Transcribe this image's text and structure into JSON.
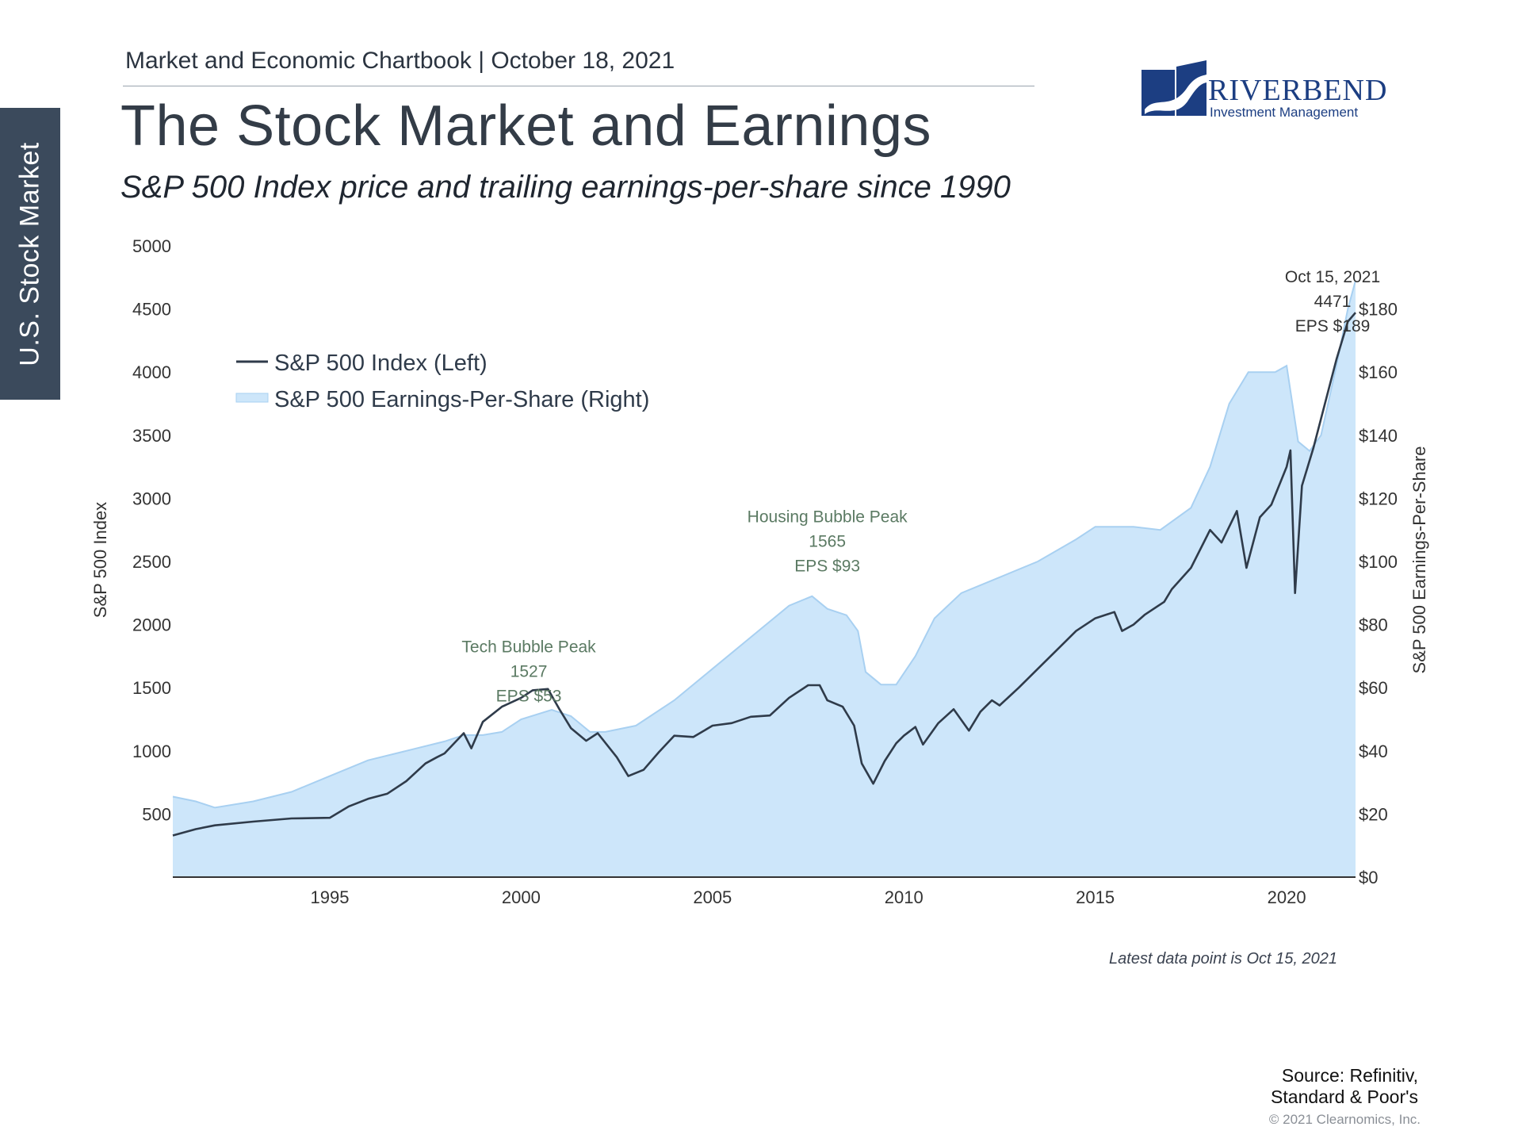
{
  "side_tab": "U.S. Stock Market",
  "header": "Market and Economic Chartbook | October 18, 2021",
  "title": "The Stock Market and Earnings",
  "subtitle": "S&P 500 Index price and trailing earnings-per-share since 1990",
  "logo": {
    "name": "RIVERBEND",
    "sub": "Investment Management",
    "color": "#1c3e82"
  },
  "footnote": "Latest data point is Oct 15, 2021",
  "source": [
    "Source: Refinitiv,",
    "Standard & Poor's"
  ],
  "copyright": "© 2021 Clearnomics, Inc.",
  "chart_data": {
    "type": "line",
    "ylabel": "S&P 500 Index",
    "y2label": "S&P 500 Earnings-Per-Share",
    "xlim": [
      1990.9,
      2021.8
    ],
    "ylim": [
      0,
      5000
    ],
    "y2lim": [
      0,
      200
    ],
    "x_ticks": [
      1995,
      2000,
      2005,
      2010,
      2015,
      2020
    ],
    "y_ticks": [
      500,
      1000,
      1500,
      2000,
      2500,
      3000,
      3500,
      4000,
      4500,
      5000
    ],
    "y2_ticks": [
      "$0",
      "$20",
      "$40",
      "$60",
      "$80",
      "$100",
      "$120",
      "$140",
      "$160",
      "$180"
    ],
    "y2_tick_values": [
      0,
      20,
      40,
      60,
      80,
      100,
      120,
      140,
      160,
      180
    ],
    "legend": {
      "placement": "top-left",
      "entries": [
        "S&P 500 Index (Left)",
        "S&P 500 Earnings-Per-Share (Right)"
      ]
    },
    "colors": {
      "index": "#2f3b4a",
      "eps_fill": "#cde6fa",
      "eps_line": "#a8d0f1",
      "annotation": "#5b7a63",
      "axis": "#333333"
    },
    "series": [
      {
        "name": "S&P 500 Index (Left)",
        "axis": "left",
        "x": [
          1990.9,
          1991.5,
          1992.0,
          1993.0,
          1994.0,
          1995.0,
          1995.5,
          1996.0,
          1996.5,
          1997.0,
          1997.5,
          1997.8,
          1998.0,
          1998.5,
          1998.7,
          1999.0,
          1999.5,
          2000.0,
          2000.3,
          2000.7,
          2001.0,
          2001.3,
          2001.7,
          2002.0,
          2002.5,
          2002.8,
          2003.2,
          2003.6,
          2004.0,
          2004.5,
          2005.0,
          2005.5,
          2006.0,
          2006.5,
          2007.0,
          2007.5,
          2007.8,
          2008.0,
          2008.4,
          2008.7,
          2008.9,
          2009.2,
          2009.5,
          2009.8,
          2010.0,
          2010.3,
          2010.5,
          2010.9,
          2011.3,
          2011.7,
          2012.0,
          2012.3,
          2012.5,
          2013.0,
          2013.5,
          2014.0,
          2014.5,
          2015.0,
          2015.5,
          2015.7,
          2016.0,
          2016.3,
          2016.8,
          2017.0,
          2017.5,
          2018.0,
          2018.3,
          2018.7,
          2018.95,
          2019.3,
          2019.6,
          2020.0,
          2020.1,
          2020.22,
          2020.4,
          2020.7,
          2021.0,
          2021.3,
          2021.6,
          2021.8
        ],
        "values": [
          330,
          380,
          410,
          440,
          465,
          470,
          560,
          620,
          660,
          760,
          900,
          950,
          980,
          1140,
          1020,
          1230,
          1350,
          1420,
          1480,
          1490,
          1330,
          1180,
          1080,
          1140,
          950,
          800,
          850,
          990,
          1120,
          1110,
          1200,
          1220,
          1270,
          1280,
          1420,
          1520,
          1520,
          1400,
          1350,
          1200,
          900,
          740,
          920,
          1060,
          1120,
          1190,
          1050,
          1220,
          1330,
          1160,
          1310,
          1400,
          1360,
          1500,
          1650,
          1800,
          1950,
          2050,
          2100,
          1950,
          2000,
          2080,
          2180,
          2280,
          2450,
          2750,
          2650,
          2900,
          2450,
          2850,
          2950,
          3250,
          3380,
          2250,
          3100,
          3400,
          3750,
          4100,
          4400,
          4471
        ]
      },
      {
        "name": "S&P 500 Earnings-Per-Share (Right)",
        "axis": "right",
        "x": [
          1990.9,
          1991.5,
          1992.0,
          1993.0,
          1994.0,
          1995.0,
          1996.0,
          1997.0,
          1998.0,
          1998.5,
          1999.0,
          1999.5,
          2000.0,
          2000.8,
          2001.3,
          2001.8,
          2002.2,
          2003.0,
          2004.0,
          2005.0,
          2006.0,
          2007.0,
          2007.6,
          2008.0,
          2008.5,
          2008.8,
          2009.0,
          2009.4,
          2009.8,
          2010.3,
          2010.8,
          2011.5,
          2012.5,
          2013.5,
          2014.5,
          2015.0,
          2016.0,
          2016.7,
          2017.5,
          2018.0,
          2018.5,
          2019.0,
          2019.7,
          2020.0,
          2020.3,
          2020.6,
          2020.9,
          2021.3,
          2021.6,
          2021.8
        ],
        "values": [
          25.5,
          24,
          22,
          24,
          27,
          32,
          37,
          40,
          43,
          45,
          45,
          46,
          50,
          53,
          51,
          46,
          46,
          48,
          56,
          66,
          76,
          86,
          89,
          85,
          83,
          78,
          65,
          61,
          61,
          70,
          82,
          90,
          95,
          100,
          107,
          111,
          111,
          110,
          117,
          130,
          150,
          160,
          160,
          162,
          138,
          135,
          140,
          162,
          180,
          189
        ]
      }
    ],
    "annotations": [
      {
        "lines": [
          "Tech Bubble Peak",
          "1527",
          "EPS $53"
        ],
        "x": 2000.2,
        "y": 1780
      },
      {
        "lines": [
          "Housing Bubble Peak",
          "1565",
          "EPS $93"
        ],
        "x": 2008.0,
        "y": 2810
      },
      {
        "lines": [
          "Oct 15, 2021",
          "4471",
          "EPS $189"
        ],
        "x": 2021.2,
        "y": 4710
      }
    ]
  }
}
